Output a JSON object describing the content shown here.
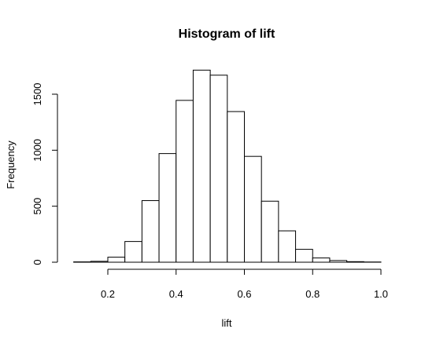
{
  "chart_data": {
    "type": "bar",
    "title": "Histogram of lift",
    "xlabel": "lift",
    "ylabel": "Frequency",
    "bins": [
      {
        "start": 0.1,
        "end": 0.15,
        "value": 3
      },
      {
        "start": 0.15,
        "end": 0.2,
        "value": 8
      },
      {
        "start": 0.2,
        "end": 0.25,
        "value": 45
      },
      {
        "start": 0.25,
        "end": 0.3,
        "value": 185
      },
      {
        "start": 0.3,
        "end": 0.35,
        "value": 550
      },
      {
        "start": 0.35,
        "end": 0.4,
        "value": 970
      },
      {
        "start": 0.4,
        "end": 0.45,
        "value": 1445
      },
      {
        "start": 0.45,
        "end": 0.5,
        "value": 1715
      },
      {
        "start": 0.5,
        "end": 0.55,
        "value": 1670
      },
      {
        "start": 0.55,
        "end": 0.6,
        "value": 1345
      },
      {
        "start": 0.6,
        "end": 0.65,
        "value": 945
      },
      {
        "start": 0.65,
        "end": 0.7,
        "value": 545
      },
      {
        "start": 0.7,
        "end": 0.75,
        "value": 280
      },
      {
        "start": 0.75,
        "end": 0.8,
        "value": 115
      },
      {
        "start": 0.8,
        "end": 0.85,
        "value": 38
      },
      {
        "start": 0.85,
        "end": 0.9,
        "value": 15
      },
      {
        "start": 0.9,
        "end": 0.95,
        "value": 5
      },
      {
        "start": 0.95,
        "end": 1.0,
        "value": 2
      }
    ],
    "x_ticks": [
      0.2,
      0.4,
      0.6,
      0.8,
      1.0
    ],
    "x_tick_labels": [
      "0.2",
      "0.4",
      "0.6",
      "0.8",
      "1.0"
    ],
    "y_ticks": [
      0,
      500,
      1000,
      1500
    ],
    "y_tick_labels": [
      "0",
      "500",
      "1000",
      "1500"
    ],
    "xlim": [
      0.2,
      1.0
    ],
    "ylim": [
      0,
      1500
    ],
    "grid": false
  }
}
